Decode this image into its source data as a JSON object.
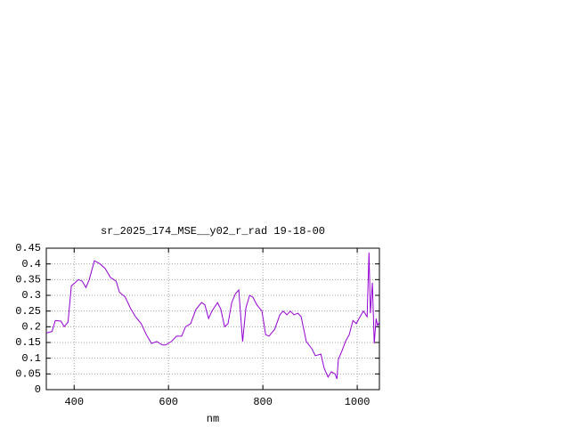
{
  "chart_data": {
    "type": "line",
    "title": "sr_2025_174_MSE__y02_r_rad 19-18-00",
    "x_label": "nm",
    "x": [
      341,
      353,
      360,
      372,
      379,
      387,
      394,
      402,
      409,
      417,
      425,
      432,
      443,
      455,
      466,
      477,
      489,
      496,
      508,
      519,
      530,
      542,
      553,
      564,
      575,
      587,
      594,
      606,
      617,
      628,
      636,
      647,
      658,
      670,
      677,
      685,
      692,
      704,
      711,
      719,
      726,
      734,
      742,
      749,
      757,
      764,
      772,
      779,
      787,
      798,
      806,
      813,
      825,
      836,
      843,
      851,
      858,
      866,
      874,
      881,
      892,
      904,
      911,
      923,
      930,
      938,
      945,
      953,
      957,
      960,
      968,
      975,
      983,
      991,
      998,
      1006,
      1013,
      1021,
      1025,
      1028,
      1032,
      1036,
      1040,
      1043,
      1047
    ],
    "series": [
      {
        "color": "#9400d3",
        "values": [
          0.18,
          0.185,
          0.22,
          0.218,
          0.2,
          0.215,
          0.33,
          0.34,
          0.35,
          0.345,
          0.325,
          0.35,
          0.41,
          0.4,
          0.385,
          0.357,
          0.345,
          0.31,
          0.295,
          0.26,
          0.232,
          0.21,
          0.175,
          0.147,
          0.153,
          0.142,
          0.142,
          0.153,
          0.17,
          0.17,
          0.2,
          0.21,
          0.255,
          0.277,
          0.27,
          0.226,
          0.25,
          0.277,
          0.255,
          0.2,
          0.21,
          0.277,
          0.305,
          0.317,
          0.153,
          0.26,
          0.3,
          0.294,
          0.27,
          0.25,
          0.175,
          0.17,
          0.192,
          0.238,
          0.25,
          0.238,
          0.25,
          0.238,
          0.243,
          0.232,
          0.153,
          0.13,
          0.108,
          0.113,
          0.068,
          0.04,
          0.057,
          0.05,
          0.034,
          0.096,
          0.125,
          0.153,
          0.175,
          0.22,
          0.21,
          0.232,
          0.25,
          0.232,
          0.436,
          0.243,
          0.34,
          0.147,
          0.226,
          0.204,
          0.215
        ]
      }
    ],
    "xlim": [
      341,
      1047
    ],
    "xticks": [
      400,
      600,
      800,
      1000
    ],
    "ylim": [
      0,
      0.45
    ],
    "yticks": [
      0,
      0.05,
      0.1,
      0.15,
      0.2,
      0.25,
      0.3,
      0.35,
      0.4,
      0.45
    ],
    "grid": true
  }
}
